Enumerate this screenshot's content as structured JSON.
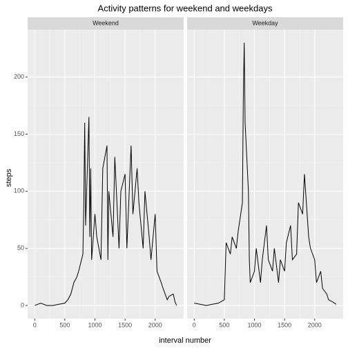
{
  "chart_data": {
    "type": "line",
    "facet": true,
    "title": "Activity patterns for weekend and weekdays",
    "x_label": "interval number",
    "y_label": "steps",
    "xlim": [
      -117.75,
      2472.75
    ],
    "xticks": [
      0,
      500,
      1000,
      1500,
      2000
    ],
    "ylim": [
      -11.5,
      241.5
    ],
    "yticks": [
      0,
      50,
      100,
      150,
      200
    ],
    "grid": true,
    "series": [
      {
        "name": "Weekend",
        "color": "#000000",
        "x": [
          0,
          100,
          200,
          300,
          400,
          500,
          550,
          600,
          650,
          700,
          730,
          800,
          815,
          830,
          845,
          900,
          915,
          930,
          945,
          1000,
          1030,
          1100,
          1130,
          1200,
          1215,
          1230,
          1300,
          1330,
          1400,
          1430,
          1500,
          1530,
          1600,
          1630,
          1700,
          1730,
          1800,
          1830,
          1900,
          1930,
          2000,
          2030,
          2100,
          2130,
          2200,
          2230,
          2300,
          2330,
          2355
        ],
        "values": [
          0,
          2,
          0,
          0,
          1,
          2,
          5,
          10,
          20,
          25,
          30,
          45,
          90,
          160,
          70,
          165,
          60,
          120,
          40,
          80,
          60,
          40,
          120,
          140,
          40,
          100,
          60,
          130,
          50,
          100,
          115,
          50,
          140,
          80,
          120,
          90,
          50,
          100,
          60,
          40,
          80,
          30,
          20,
          15,
          5,
          8,
          10,
          3,
          0
        ]
      },
      {
        "name": "Weekday",
        "color": "#000000",
        "x": [
          0,
          100,
          200,
          300,
          400,
          500,
          530,
          600,
          630,
          700,
          730,
          800,
          815,
          830,
          845,
          900,
          915,
          930,
          1000,
          1030,
          1100,
          1130,
          1200,
          1230,
          1300,
          1330,
          1400,
          1430,
          1500,
          1530,
          1600,
          1630,
          1700,
          1730,
          1800,
          1830,
          1900,
          1930,
          2000,
          2030,
          2100,
          2130,
          2200,
          2230,
          2300,
          2330,
          2355
        ],
        "values": [
          2,
          1,
          0,
          1,
          2,
          5,
          55,
          45,
          60,
          50,
          65,
          90,
          180,
          230,
          160,
          100,
          40,
          20,
          30,
          50,
          20,
          40,
          70,
          40,
          30,
          50,
          20,
          40,
          30,
          55,
          70,
          40,
          45,
          90,
          80,
          115,
          60,
          50,
          40,
          20,
          30,
          15,
          10,
          5,
          3,
          2,
          1
        ]
      }
    ]
  }
}
